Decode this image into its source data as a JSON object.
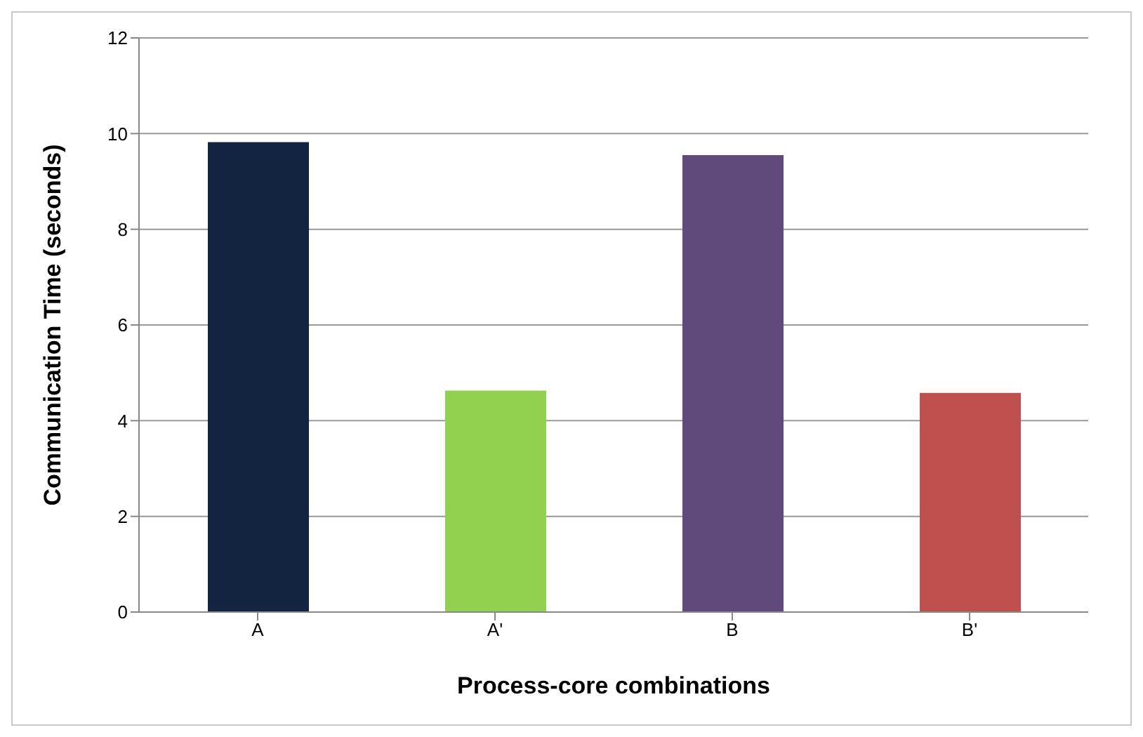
{
  "chart_data": {
    "type": "bar",
    "xlabel": "Process-core combinations",
    "ylabel": "Communication Time (seconds)",
    "categories": [
      "A",
      "A'",
      "B",
      "B'"
    ],
    "values": [
      9.82,
      4.63,
      9.55,
      4.58
    ],
    "colors": [
      "#12243f",
      "#92d050",
      "#604a7b",
      "#c0504d"
    ],
    "ylim": [
      0,
      12
    ],
    "yticks": [
      0,
      2,
      4,
      6,
      8,
      10,
      12
    ],
    "grid": "y"
  }
}
